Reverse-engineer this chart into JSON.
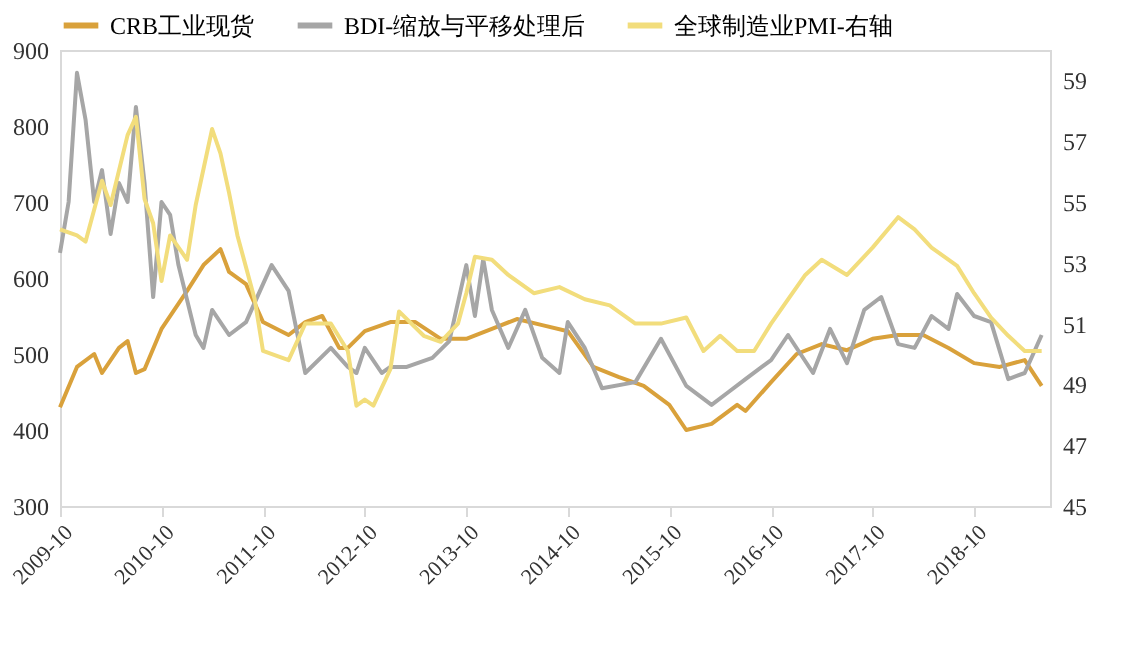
{
  "chart_data": {
    "type": "line",
    "legend": "top",
    "xlim": [
      "2009-10",
      "2019-07"
    ],
    "xticks": [
      "2009-10",
      "2010-10",
      "2011-10",
      "2012-10",
      "2013-10",
      "2014-10",
      "2015-10",
      "2016-10",
      "2017-10",
      "2018-10"
    ],
    "ylim": [
      300,
      900
    ],
    "yticks": [
      300,
      400,
      500,
      600,
      700,
      800,
      900
    ],
    "y2lim": [
      45,
      60
    ],
    "y2ticks": [
      45,
      47,
      49,
      51,
      53,
      55,
      57,
      59
    ],
    "series": [
      {
        "name": "CRB工业现货",
        "color": "#d9a13b",
        "x": [
          "2009-10",
          "2009-12",
          "2010-02",
          "2010-03",
          "2010-05",
          "2010-06",
          "2010-07",
          "2010-08",
          "2010-10",
          "2011-01",
          "2011-03",
          "2011-05",
          "2011-06",
          "2011-08",
          "2011-10",
          "2012-01",
          "2012-03",
          "2012-05",
          "2012-07",
          "2012-08",
          "2012-10",
          "2013-01",
          "2013-04",
          "2013-07",
          "2013-10",
          "2014-01",
          "2014-04",
          "2014-07",
          "2014-10",
          "2015-01",
          "2015-04",
          "2015-07",
          "2015-10",
          "2015-12",
          "2016-03",
          "2016-06",
          "2016-07",
          "2016-10",
          "2017-01",
          "2017-04",
          "2017-07",
          "2017-10",
          "2018-01",
          "2018-04",
          "2018-07",
          "2018-10",
          "2019-01",
          "2019-04",
          "2019-06"
        ],
        "values": [
          430,
          483,
          500,
          475,
          508,
          517,
          475,
          480,
          533,
          583,
          617,
          638,
          608,
          592,
          542,
          525,
          542,
          550,
          508,
          508,
          530,
          542,
          542,
          520,
          520,
          533,
          546,
          538,
          530,
          483,
          470,
          458,
          433,
          400,
          408,
          433,
          425,
          463,
          500,
          513,
          505,
          520,
          525,
          525,
          508,
          488,
          483,
          492,
          458
        ]
      },
      {
        "name": "BDI-缩放与平移处理后",
        "color": "#a6a6a6",
        "x": [
          "2009-10",
          "2009-11",
          "2009-12",
          "2010-01",
          "2010-02",
          "2010-03",
          "2010-04",
          "2010-05",
          "2010-06",
          "2010-07",
          "2010-08",
          "2010-09",
          "2010-10",
          "2010-11",
          "2010-12",
          "2011-02",
          "2011-03",
          "2011-04",
          "2011-06",
          "2011-08",
          "2011-10",
          "2011-11",
          "2012-01",
          "2012-03",
          "2012-06",
          "2012-08",
          "2012-09",
          "2012-10",
          "2012-12",
          "2013-01",
          "2013-03",
          "2013-06",
          "2013-08",
          "2013-10",
          "2013-11",
          "2013-12",
          "2014-01",
          "2014-03",
          "2014-05",
          "2014-07",
          "2014-09",
          "2014-10",
          "2014-12",
          "2015-02",
          "2015-06",
          "2015-09",
          "2015-12",
          "2016-03",
          "2016-05",
          "2016-07",
          "2016-10",
          "2016-12",
          "2017-03",
          "2017-05",
          "2017-07",
          "2017-09",
          "2017-11",
          "2018-01",
          "2018-03",
          "2018-05",
          "2018-07",
          "2018-08",
          "2018-10",
          "2018-12",
          "2019-02",
          "2019-04",
          "2019-06"
        ],
        "values": [
          633,
          700,
          870,
          808,
          700,
          742,
          658,
          725,
          700,
          825,
          725,
          575,
          700,
          683,
          617,
          525,
          508,
          558,
          525,
          542,
          592,
          617,
          583,
          475,
          508,
          483,
          475,
          508,
          475,
          483,
          483,
          495,
          517,
          617,
          550,
          625,
          558,
          508,
          558,
          495,
          475,
          542,
          508,
          455,
          463,
          520,
          458,
          433,
          450,
          467,
          492,
          525,
          475,
          533,
          488,
          558,
          575,
          513,
          508,
          550,
          533,
          579,
          550,
          542,
          467,
          475,
          525
        ]
      },
      {
        "name": "全球制造业PMI-右轴",
        "color": "#f2dd7c",
        "axis": "y2",
        "x": [
          "2009-10",
          "2009-12",
          "2010-01",
          "2010-03",
          "2010-04",
          "2010-06",
          "2010-07",
          "2010-08",
          "2010-09",
          "2010-10",
          "2010-11",
          "2011-01",
          "2011-02",
          "2011-04",
          "2011-05",
          "2011-06",
          "2011-07",
          "2011-09",
          "2011-10",
          "2012-01",
          "2012-03",
          "2012-06",
          "2012-08",
          "2012-09",
          "2012-10",
          "2012-11",
          "2013-01",
          "2013-02",
          "2013-05",
          "2013-07",
          "2013-09",
          "2013-10",
          "2013-11",
          "2014-01",
          "2014-03",
          "2014-06",
          "2014-09",
          "2014-12",
          "2015-03",
          "2015-06",
          "2015-09",
          "2015-12",
          "2016-02",
          "2016-04",
          "2016-06",
          "2016-08",
          "2016-10",
          "2016-12",
          "2017-02",
          "2017-04",
          "2017-07",
          "2017-10",
          "2018-01",
          "2018-03",
          "2018-05",
          "2018-08",
          "2018-10",
          "2018-12",
          "2019-02",
          "2019-04",
          "2019-06"
        ],
        "values": [
          54.1,
          53.9,
          53.7,
          55.7,
          54.9,
          57.2,
          57.8,
          55.1,
          54.3,
          52.4,
          53.9,
          53.1,
          54.9,
          57.4,
          56.6,
          55.3,
          53.9,
          51.8,
          50.1,
          49.8,
          51.0,
          51.0,
          50.1,
          48.3,
          48.5,
          48.3,
          49.5,
          51.4,
          50.6,
          50.4,
          51.0,
          52.0,
          53.2,
          53.1,
          52.6,
          52.0,
          52.2,
          51.8,
          51.6,
          51.0,
          51.0,
          51.2,
          50.1,
          50.6,
          50.1,
          50.1,
          51.0,
          51.8,
          52.6,
          53.1,
          52.6,
          53.5,
          54.5,
          54.1,
          53.5,
          52.9,
          52.0,
          51.2,
          50.6,
          50.1,
          50.1
        ]
      }
    ]
  }
}
